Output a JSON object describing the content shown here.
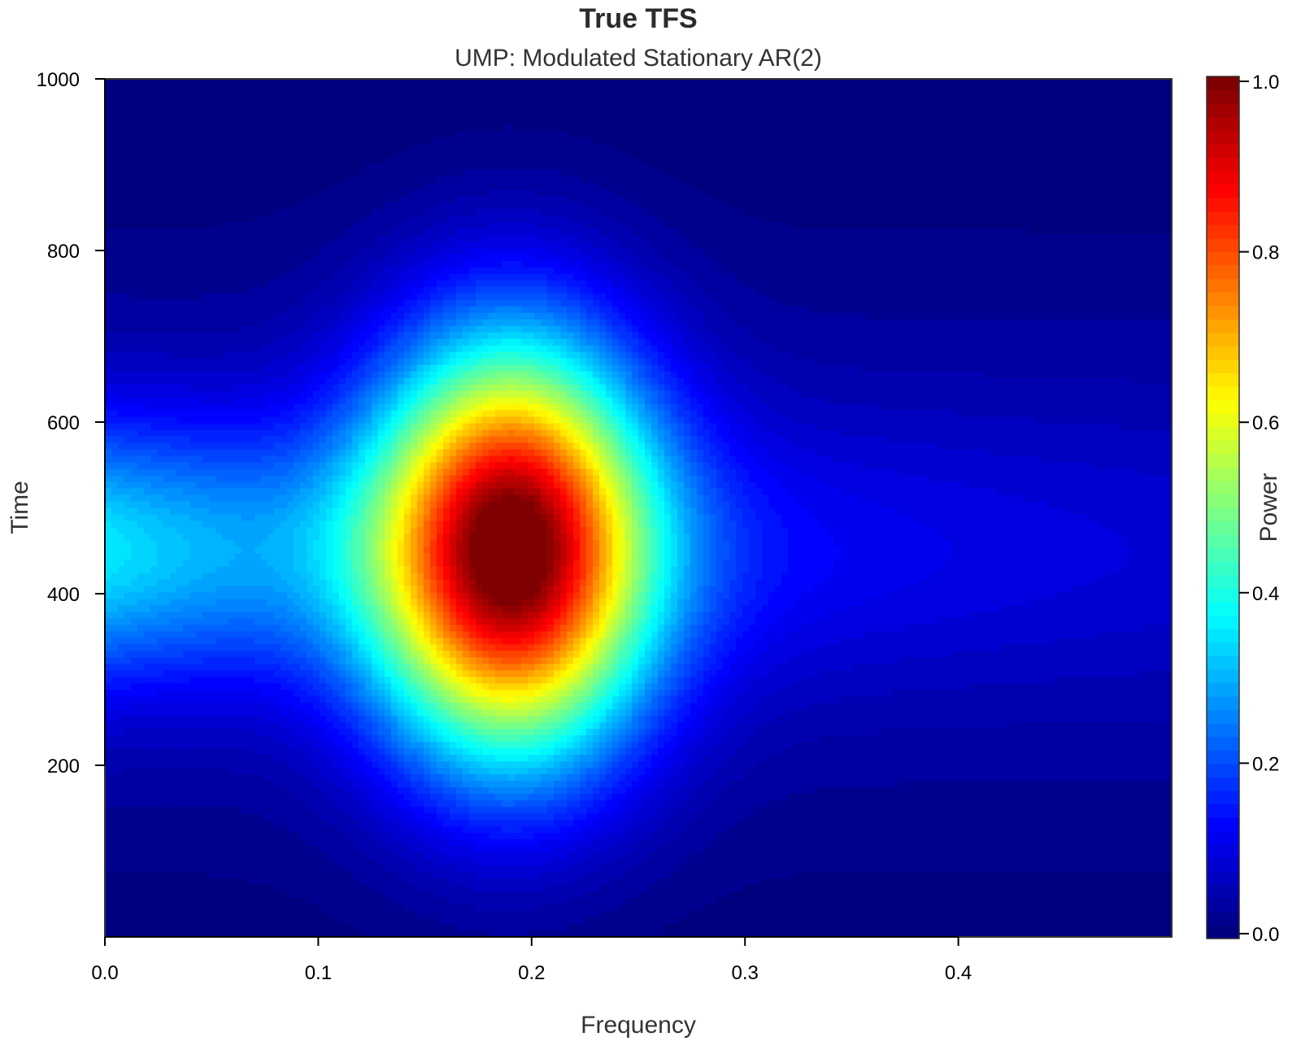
{
  "chart_data": {
    "type": "heatmap",
    "title": "True TFS",
    "subtitle": "UMP: Modulated Stationary AR(2)",
    "xlabel": "Frequency",
    "ylabel": "Time",
    "colorbar_label": "Power",
    "xlim": [
      0.0,
      0.5
    ],
    "ylim": [
      0,
      1000
    ],
    "zlim": [
      0.0,
      1.0
    ],
    "x_ticks": [
      0.0,
      0.1,
      0.2,
      0.3,
      0.4
    ],
    "x_tick_labels": [
      "0.0",
      "0.1",
      "0.2",
      "0.3",
      "0.4"
    ],
    "y_ticks": [
      200,
      400,
      600,
      800,
      1000
    ],
    "y_tick_labels": [
      "200",
      "400",
      "600",
      "800",
      "1000"
    ],
    "z_ticks": [
      0.0,
      0.2,
      0.4,
      0.6,
      0.8,
      1.0
    ],
    "z_tick_labels": [
      "0.0",
      "0.2",
      "0.4",
      "0.6",
      "0.8",
      "1.0"
    ],
    "surface": {
      "peak_frequency": 0.19,
      "peak_time": 450,
      "peak_power": 1.0,
      "description_of_shape": "single modulated peak"
    },
    "colormap": [
      "#00007f",
      "#0000ff",
      "#007fff",
      "#00ffff",
      "#7fff7f",
      "#ffff00",
      "#ff7f00",
      "#ff0000",
      "#7f0000"
    ],
    "color_levels": 64
  }
}
